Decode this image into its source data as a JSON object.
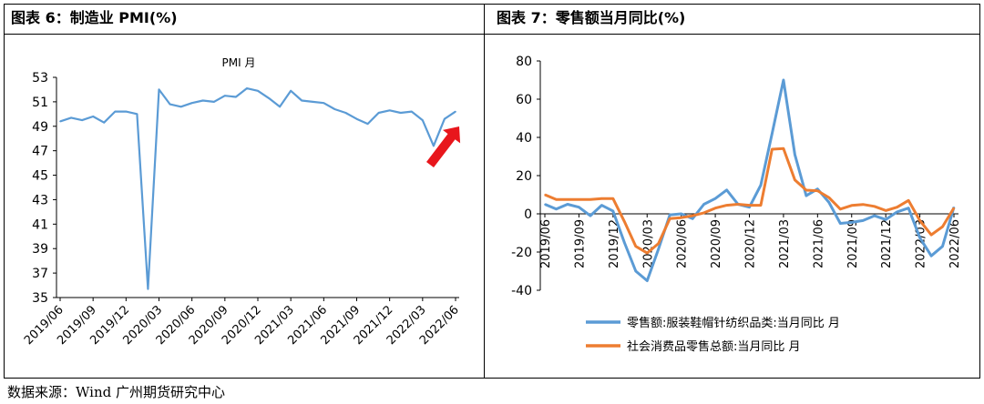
{
  "left_title": "图表 6：制造业 PMI(%)",
  "right_title": "图表  7：零售额当月同比(%)",
  "source": "数据来源：Wind  广州期货研究中心",
  "colors": {
    "pmi": "#5b9bd5",
    "apparel": "#5b9bd5",
    "total": "#ed7d31",
    "arrow": "#e8161c"
  },
  "chart_data": [
    {
      "type": "line",
      "title": "",
      "series_label": "PMI  月",
      "ylim": [
        35,
        53
      ],
      "yticks": [
        "53",
        "51",
        "49",
        "47",
        "45",
        "43",
        "41",
        "39",
        "37",
        "35"
      ],
      "xtick_labels": [
        "2019/06",
        "2019/09",
        "2019/12",
        "2020/03",
        "2020/06",
        "2020/09",
        "2020/12",
        "2021/03",
        "2021/06",
        "2021/09",
        "2021/12",
        "2022/03",
        "2022/06"
      ],
      "x": [
        "2019/06",
        "2019/07",
        "2019/08",
        "2019/09",
        "2019/10",
        "2019/11",
        "2019/12",
        "2020/01",
        "2020/02",
        "2020/03",
        "2020/04",
        "2020/05",
        "2020/06",
        "2020/07",
        "2020/08",
        "2020/09",
        "2020/10",
        "2020/11",
        "2020/12",
        "2021/01",
        "2021/02",
        "2021/03",
        "2021/04",
        "2021/05",
        "2021/06",
        "2021/07",
        "2021/08",
        "2021/09",
        "2021/10",
        "2021/11",
        "2021/12",
        "2022/01",
        "2022/02",
        "2022/03",
        "2022/04",
        "2022/05",
        "2022/06"
      ],
      "series": [
        {
          "name": "PMI  月",
          "values": [
            49.4,
            49.7,
            49.5,
            49.8,
            49.3,
            50.2,
            50.2,
            50.0,
            35.7,
            52.0,
            50.8,
            50.6,
            50.9,
            51.1,
            51.0,
            51.5,
            51.4,
            52.1,
            51.9,
            51.3,
            50.6,
            51.9,
            51.1,
            51.0,
            50.9,
            50.4,
            50.1,
            49.6,
            49.2,
            50.1,
            50.3,
            50.1,
            50.2,
            49.5,
            47.4,
            49.6,
            50.2
          ]
        }
      ],
      "annotation": "upward-arrow"
    },
    {
      "type": "line",
      "title": "",
      "ylim": [
        -40,
        80
      ],
      "yticks": [
        "80",
        "60",
        "40",
        "20",
        "0",
        "-20",
        "-40"
      ],
      "xtick_labels": [
        "2019/06",
        "2019/09",
        "2019/12",
        "2020/03",
        "2020/06",
        "2020/09",
        "2020/12",
        "2021/03",
        "2021/06",
        "2021/09",
        "2021/12",
        "2022/03",
        "2022/06"
      ],
      "x": [
        "2019/06",
        "2019/07",
        "2019/08",
        "2019/09",
        "2019/10",
        "2019/11",
        "2019/12",
        "2020/01",
        "2020/02",
        "2020/03",
        "2020/04",
        "2020/05",
        "2020/06",
        "2020/07",
        "2020/08",
        "2020/09",
        "2020/10",
        "2020/11",
        "2020/12",
        "2021/01",
        "2021/02",
        "2021/03",
        "2021/04",
        "2021/05",
        "2021/06",
        "2021/07",
        "2021/08",
        "2021/09",
        "2021/10",
        "2021/11",
        "2021/12",
        "2022/01",
        "2022/02",
        "2022/03",
        "2022/04",
        "2022/05",
        "2022/06"
      ],
      "series": [
        {
          "name": "零售额:服装鞋帽针纺织品类:当月同比  月",
          "values": [
            5,
            2.5,
            5,
            3.5,
            -1,
            4.5,
            1.5,
            -15,
            -30,
            -35,
            -18.5,
            -0.5,
            0,
            -2.5,
            5,
            8,
            12.5,
            5,
            3.5,
            15,
            42,
            70,
            31,
            9.5,
            13,
            6,
            -5,
            -4.5,
            -3.5,
            -1,
            -3,
            1,
            3,
            -12.5,
            -22,
            -17,
            3.5
          ]
        },
        {
          "name": "社会消费品零售总额:当月同比  月",
          "values": [
            10,
            7.5,
            7.5,
            7.5,
            7.5,
            8,
            8,
            -4,
            -17,
            -20.5,
            -15.5,
            -2.5,
            -2,
            -1,
            0.5,
            3,
            4.5,
            5,
            4.5,
            4.5,
            33.8,
            34.2,
            17.7,
            12.4,
            12.1,
            8.5,
            2.5,
            4.4,
            4.9,
            3.9,
            1.7,
            3.5,
            7,
            -3.5,
            -11,
            -6.7,
            3.1
          ]
        }
      ]
    }
  ]
}
